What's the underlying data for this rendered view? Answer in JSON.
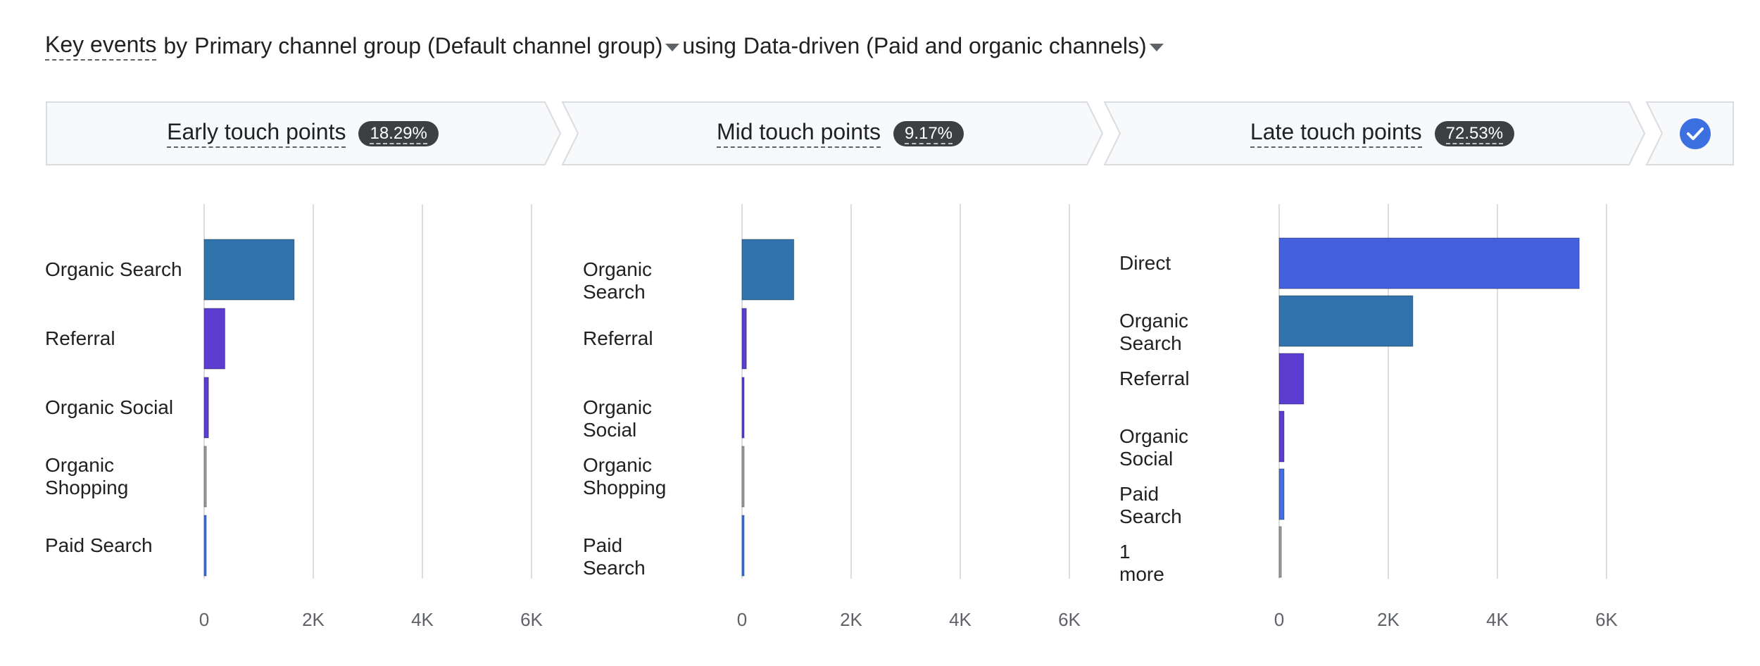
{
  "header": {
    "metric": "Key events",
    "by_text": "by",
    "dimension": "Primary channel group (Default channel group)",
    "using_text": "using",
    "model": "Data-driven (Paid and organic channels)"
  },
  "stages": [
    {
      "label": "Early touch points",
      "percent": "18.29%"
    },
    {
      "label": "Mid touch points",
      "percent": "9.17%"
    },
    {
      "label": "Late touch points",
      "percent": "72.53%"
    }
  ],
  "colors": {
    "organic_search": "#3174ad",
    "referral": "#5c3dd1",
    "organic_social": "#5c3dd1",
    "organic_shopping": "#9aa0a6",
    "paid_search": "#3f6fe0",
    "direct": "#4361df",
    "more": "#9aa0a6",
    "grid": "#dadce0",
    "stage_fill": "#f8f9fa",
    "stage_stroke": "#dadce0"
  },
  "chart_data": [
    {
      "type": "bar",
      "orientation": "horizontal",
      "categories": [
        "Organic Search",
        "Referral",
        "Organic Social",
        "Organic Shopping",
        "Paid Search"
      ],
      "values": [
        1650,
        380,
        80,
        40,
        20
      ],
      "bar_colors": [
        "#3174ad",
        "#5c3dd1",
        "#5c3dd1",
        "#9aa0a6",
        "#3f6fe0"
      ],
      "xlim": [
        0,
        6000
      ],
      "xticks": [
        0,
        2000,
        4000,
        6000
      ],
      "xtick_labels": [
        "0",
        "2K",
        "4K",
        "6K"
      ],
      "grid": true
    },
    {
      "type": "bar",
      "orientation": "horizontal",
      "categories": [
        "Organic Search",
        "Referral",
        "Organic Social",
        "Organic Shopping",
        "Paid Search"
      ],
      "values": [
        950,
        80,
        30,
        20,
        20
      ],
      "bar_colors": [
        "#3174ad",
        "#5c3dd1",
        "#5c3dd1",
        "#9aa0a6",
        "#3f6fe0"
      ],
      "xlim": [
        0,
        6000
      ],
      "xticks": [
        0,
        2000,
        4000,
        6000
      ],
      "xtick_labels": [
        "0",
        "2K",
        "4K",
        "6K"
      ],
      "grid": true
    },
    {
      "type": "bar",
      "orientation": "horizontal",
      "categories": [
        "Direct",
        "Organic Search",
        "Referral",
        "Organic Social",
        "Paid Search",
        "1 more"
      ],
      "values": [
        5500,
        2450,
        450,
        90,
        90,
        40
      ],
      "bar_colors": [
        "#4361df",
        "#3174ad",
        "#5c3dd1",
        "#5c3dd1",
        "#3f6fe0",
        "#9aa0a6"
      ],
      "xlim": [
        0,
        6000
      ],
      "xticks": [
        0,
        2000,
        4000,
        6000
      ],
      "xtick_labels": [
        "0",
        "2K",
        "4K",
        "6K"
      ],
      "grid": true
    }
  ]
}
